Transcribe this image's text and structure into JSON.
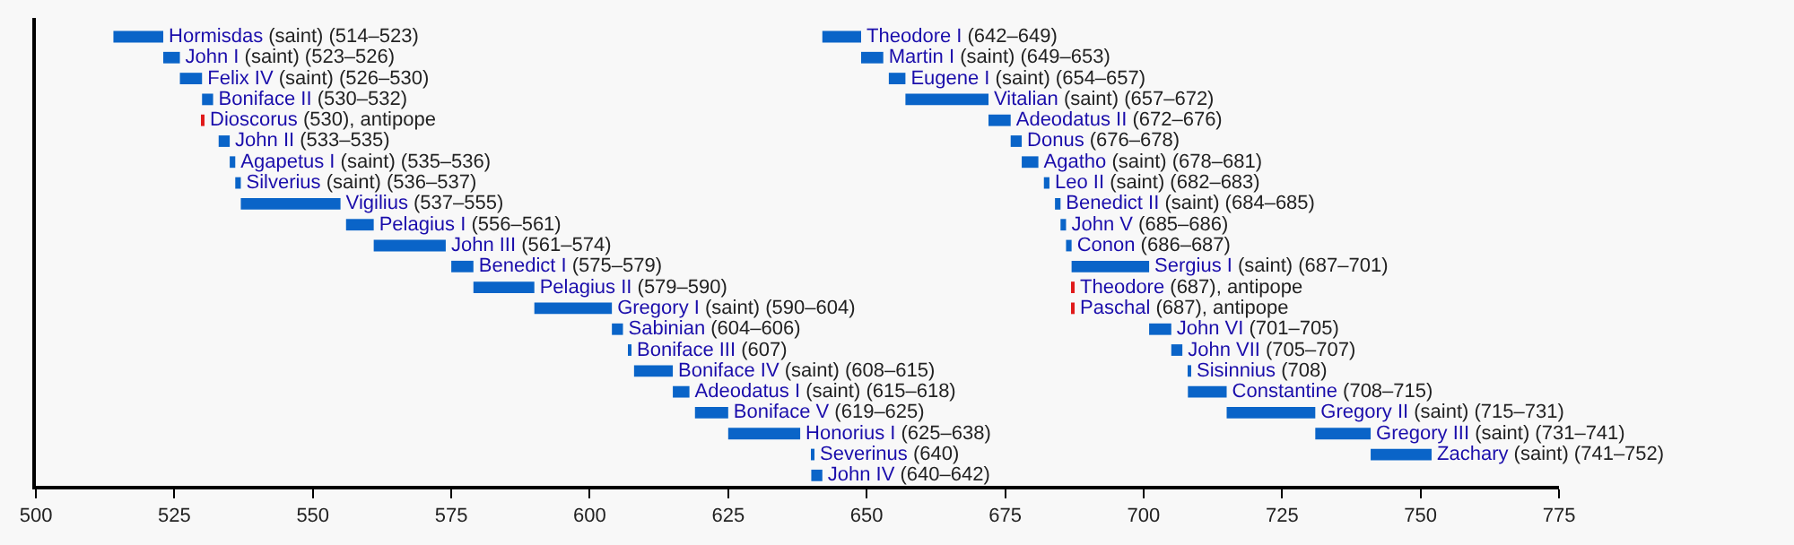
{
  "chart_data": {
    "type": "bar",
    "orientation": "horizontal",
    "categories": [
      null,
      null,
      null,
      null,
      null,
      null,
      null,
      null,
      null,
      null,
      null,
      null,
      null,
      null,
      null,
      null,
      null,
      null,
      null,
      null,
      null,
      null
    ],
    "series": [
      {
        "base": [
          514,
          523,
          526,
          530,
          530,
          533,
          535,
          536,
          537,
          556,
          561,
          575,
          579,
          590,
          604,
          607,
          608,
          615,
          619,
          625,
          640,
          640
        ],
        "values": [
          9,
          3,
          4,
          2,
          0.3,
          2,
          1,
          1,
          18,
          5,
          13,
          4,
          11,
          14,
          2,
          0.3,
          7,
          3,
          6,
          13,
          0.3,
          2
        ],
        "colors": [
          "#0a64c8",
          "#0a64c8",
          "#0a64c8",
          "#0a64c8",
          "#e01b1b",
          "#0a64c8",
          "#0a64c8",
          "#0a64c8",
          "#0a64c8",
          "#0a64c8",
          "#0a64c8",
          "#0a64c8",
          "#0a64c8",
          "#0a64c8",
          "#0a64c8",
          "#0a64c8",
          "#0a64c8",
          "#0a64c8",
          "#0a64c8",
          "#0a64c8",
          "#0a64c8",
          "#0a64c8"
        ],
        "value_labels": [
          "Hormisdas (saint) (514–523)",
          "John I (saint) (523–526)",
          "Felix IV (saint) (526–530)",
          "Boniface II (530–532)",
          "Dioscorus (530), antipope",
          "John II (533–535)",
          "Agapetus I (saint) (535–536)",
          "Silverius (saint) (536–537)",
          "Vigilius (537–555)",
          "Pelagius I (556–561)",
          "John III (561–574)",
          "Benedict I (575–579)",
          "Pelagius II (579–590)",
          "Gregory I (saint) (590–604)",
          "Sabinian (604–606)",
          "Boniface III (607)",
          "Boniface IV (saint) (608–615)",
          "Adeodatus I (saint) (615–618)",
          "Boniface V (619–625)",
          "Honorius I (625–638)",
          "Severinus (640)",
          "John IV (640–642)"
        ]
      },
      {
        "base": [
          642,
          649,
          654,
          657,
          672,
          676,
          678,
          682,
          684,
          685,
          686,
          687,
          687,
          687,
          701,
          705,
          708,
          708,
          715,
          731,
          741,
          null
        ],
        "values": [
          7,
          4,
          3,
          15,
          4,
          2,
          3,
          1,
          1,
          1,
          1,
          14,
          0.3,
          0.3,
          4,
          2,
          0.3,
          7,
          16,
          10,
          11,
          null
        ],
        "colors": [
          "#0a64c8",
          "#0a64c8",
          "#0a64c8",
          "#0a64c8",
          "#0a64c8",
          "#0a64c8",
          "#0a64c8",
          "#0a64c8",
          "#0a64c8",
          "#0a64c8",
          "#0a64c8",
          "#0a64c8",
          "#e01b1b",
          "#e01b1b",
          "#0a64c8",
          "#0a64c8",
          "#0a64c8",
          "#0a64c8",
          "#0a64c8",
          "#0a64c8",
          "#0a64c8",
          null
        ],
        "value_labels": [
          "Theodore I (642–649)",
          "Martin I (saint) (649–653)",
          "Eugene I (saint) (654–657)",
          "Vitalian (saint) (657–672)",
          "Adeodatus II (672–676)",
          "Donus (676–678)",
          "Agatho (saint) (678–681)",
          "Leo II (saint) (682–683)",
          "Benedict II (saint) (684–685)",
          "John V (685–686)",
          "Conon (686–687)",
          "Sergius I (saint) (687–701)",
          "Theodore (687), antipope",
          "Paschal (687), antipope",
          "John VI (701–705)",
          "John VII (705–707)",
          "Sisinnius (708)",
          "Constantine (708–715)",
          "Gregory II (saint) (715–731)",
          "Gregory III (saint) (731–741)",
          "Zachary (saint) (741–752)",
          null
        ]
      }
    ],
    "xlim": [
      500,
      775
    ],
    "xticks": [
      500,
      525,
      550,
      575,
      600,
      625,
      650,
      675,
      700,
      725,
      750,
      775
    ],
    "tick_labels": "x"
  }
}
